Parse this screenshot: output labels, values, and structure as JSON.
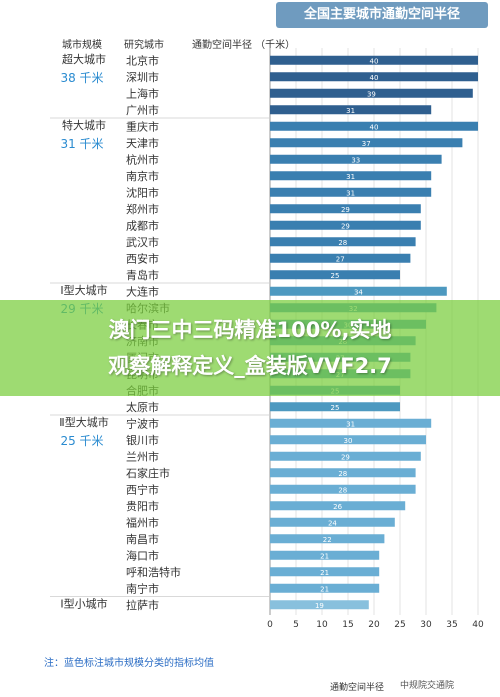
{
  "page_title": "全国主要城市通勤空间半径",
  "headers": {
    "scale": "城市规模",
    "city": "研究城市",
    "radius": "通勤空间半径 （千米）"
  },
  "banner": {
    "line1": "澳门三中三码精准100%,实地",
    "line2": "观察解释定义_盒装版VVF2.7"
  },
  "note": "注：蓝色标注城市规模分类的指标均值",
  "watermark": "中规院交通院",
  "colors": {
    "title_bg": "#6f9bbf",
    "group1": "#2f5f8f",
    "group2": "#3a7fb0",
    "group3": "#4d99c0",
    "group4": "#6aaed4",
    "group5": "#88c0dd",
    "mean_text": "#2a8bd0"
  },
  "chart_data": {
    "type": "bar",
    "orientation": "horizontal",
    "title": "全国主要城市通勤空间半径",
    "xlabel": "通勤空间半径",
    "xlim": [
      0,
      40
    ],
    "xticks": [
      0,
      5,
      10,
      15,
      20,
      25,
      30,
      35,
      40
    ],
    "groups": [
      {
        "name": "超大城市",
        "mean": "38 千米",
        "color_key": "group1",
        "cities": [
          "北京市",
          "深圳市",
          "上海市",
          "广州市"
        ],
        "values": [
          40,
          40,
          39,
          31
        ]
      },
      {
        "name": "特大城市",
        "mean": "31 千米",
        "color_key": "group2",
        "cities": [
          "重庆市",
          "天津市",
          "杭州市",
          "南京市",
          "沈阳市",
          "郑州市",
          "成都市",
          "武汉市",
          "西安市",
          "青岛市"
        ],
        "values": [
          40,
          37,
          33,
          31,
          31,
          29,
          29,
          28,
          27,
          25
        ]
      },
      {
        "name": "Ⅰ型大城市",
        "mean": "29 千米",
        "color_key": "group3",
        "cities": [
          "大连市",
          "哈尔滨市",
          "长春市",
          "济南市",
          "厦门市",
          "昆明市",
          "合肥市",
          "太原市"
        ],
        "values": [
          34,
          32,
          30,
          28,
          27,
          27,
          25,
          25
        ]
      },
      {
        "name": "Ⅱ型大城市",
        "mean": "25 千米",
        "color_key": "group4",
        "cities": [
          "宁波市",
          "银川市",
          "兰州市",
          "石家庄市",
          "西宁市",
          "贵阳市",
          "福州市",
          "南昌市",
          "海口市",
          "呼和浩特市",
          "南宁市"
        ],
        "values": [
          31,
          30,
          29,
          28,
          28,
          26,
          24,
          22,
          21,
          21,
          21
        ]
      },
      {
        "name": "Ⅰ型小城市",
        "mean": "",
        "color_key": "group5",
        "cities": [
          "拉萨市"
        ],
        "values": [
          19
        ]
      }
    ]
  }
}
